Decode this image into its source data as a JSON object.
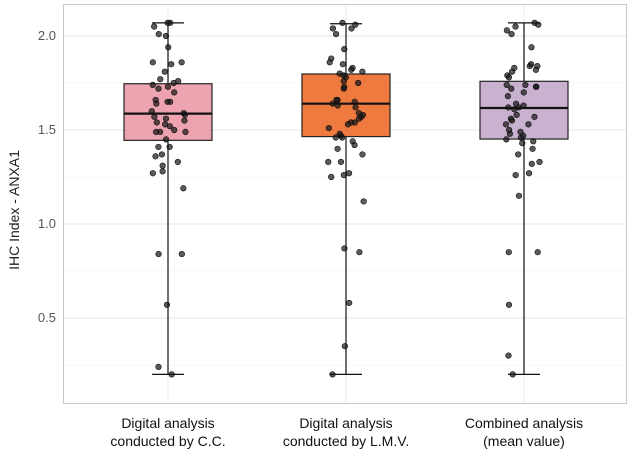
{
  "chart_data": {
    "type": "boxplot",
    "title": "",
    "xlabel": "",
    "ylabel": "IHC Index - ANXA1",
    "ylim": [
      0.15,
      2.13
    ],
    "yticks": [
      0.5,
      1.0,
      1.5,
      2.0
    ],
    "ytick_labels": [
      "0.5",
      "1.0",
      "1.5",
      "2.0"
    ],
    "grid": true,
    "categories": [
      {
        "line1": "Digital analysis",
        "line2": "conducted by C.C."
      },
      {
        "line1": "Digital analysis",
        "line2": "conducted by L.M.V."
      },
      {
        "line1": "Combined analysis",
        "line2": "(mean value)"
      }
    ],
    "series": [
      {
        "name": "Digital analysis conducted by C.C.",
        "color": "#eea4b0",
        "whisker_low": 0.2,
        "q1": 1.445,
        "median": 1.587,
        "q3": 1.746,
        "whisker_high": 2.07,
        "points": [
          2.07,
          2.07,
          2.05,
          2.01,
          2.0,
          1.94,
          1.86,
          1.86,
          1.85,
          1.81,
          1.77,
          1.76,
          1.75,
          1.74,
          1.73,
          1.72,
          1.7,
          1.66,
          1.65,
          1.65,
          1.64,
          1.6,
          1.59,
          1.58,
          1.57,
          1.56,
          1.55,
          1.54,
          1.53,
          1.52,
          1.5,
          1.49,
          1.49,
          1.49,
          1.45,
          1.41,
          1.41,
          1.37,
          1.36,
          1.33,
          1.31,
          1.28,
          1.27,
          1.19,
          0.84,
          0.84,
          0.57,
          0.24,
          0.2
        ]
      },
      {
        "name": "Digital analysis conducted by L.M.V.",
        "color": "#ee7a40",
        "whisker_low": 0.2,
        "q1": 1.465,
        "median": 1.64,
        "q3": 1.798,
        "whisker_high": 2.065,
        "points": [
          2.07,
          2.06,
          2.04,
          2.04,
          2.01,
          1.93,
          1.88,
          1.86,
          1.85,
          1.83,
          1.82,
          1.81,
          1.8,
          1.79,
          1.78,
          1.76,
          1.75,
          1.73,
          1.72,
          1.66,
          1.66,
          1.65,
          1.64,
          1.63,
          1.62,
          1.59,
          1.58,
          1.57,
          1.56,
          1.54,
          1.54,
          1.53,
          1.51,
          1.48,
          1.47,
          1.46,
          1.46,
          1.44,
          1.42,
          1.4,
          1.37,
          1.33,
          1.33,
          1.27,
          1.26,
          1.25,
          1.12,
          0.87,
          0.85,
          0.58,
          0.35,
          0.2
        ]
      },
      {
        "name": "Combined analysis (mean value)",
        "color": "#c9b2cf",
        "whisker_low": 0.2,
        "q1": 1.452,
        "median": 1.617,
        "q3": 1.759,
        "whisker_high": 2.07,
        "points": [
          2.07,
          2.06,
          2.05,
          2.03,
          2.01,
          1.94,
          1.85,
          1.84,
          1.84,
          1.83,
          1.82,
          1.81,
          1.79,
          1.78,
          1.74,
          1.74,
          1.73,
          1.73,
          1.72,
          1.7,
          1.68,
          1.64,
          1.63,
          1.62,
          1.62,
          1.61,
          1.58,
          1.57,
          1.56,
          1.55,
          1.53,
          1.53,
          1.5,
          1.49,
          1.48,
          1.47,
          1.46,
          1.45,
          1.44,
          1.43,
          1.4,
          1.37,
          1.33,
          1.32,
          1.27,
          1.26,
          1.15,
          0.85,
          0.85,
          0.57,
          0.3,
          0.2
        ]
      }
    ]
  }
}
